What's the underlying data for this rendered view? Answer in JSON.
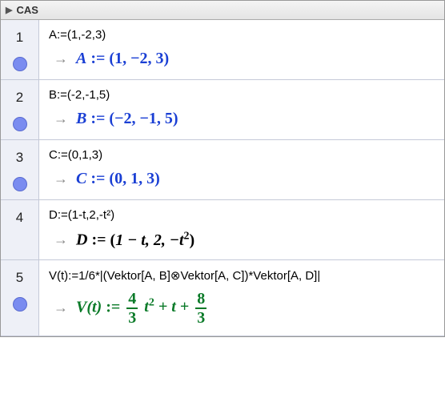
{
  "panel": {
    "title": "CAS"
  },
  "rows": [
    {
      "num": "1",
      "has_marker": true,
      "input": "A:=(1,-2,3)",
      "output_color": "blue",
      "out_lhs": "A",
      "out_assign": " := ",
      "out_rhs_plain": "(1, −2, 3)"
    },
    {
      "num": "2",
      "has_marker": true,
      "input": "B:=(-2,-1,5)",
      "output_color": "blue",
      "out_lhs": "B",
      "out_assign": " := ",
      "out_rhs_plain": "(−2, −1, 5)"
    },
    {
      "num": "3",
      "has_marker": true,
      "input": "C:=(0,1,3)",
      "output_color": "blue",
      "out_lhs": "C",
      "out_assign": " := ",
      "out_rhs_plain": "(0, 1, 3)"
    },
    {
      "num": "4",
      "has_marker": false,
      "input": "D:=(1-t,2,-t²)",
      "output_color": "black",
      "out_lhs": "D",
      "out_assign": " := ",
      "out_rhs_html": "<span class='paren'>(</span>1 − t, 2, −t<sup>2</sup><span class='paren'>)</span>"
    },
    {
      "num": "5",
      "has_marker": true,
      "input": "V(t):=1/6*|(Vektor[A, B]⊗Vektor[A, C])*Vektor[A, D]|",
      "output_color": "green",
      "out_lhs": "V(t)",
      "out_assign": " := ",
      "out_rhs_html": "<span class='frac'><span class='num'>4</span><span class='den'>3</span></span> t<sup>2</sup> + t + <span class='frac'><span class='num'>8</span><span class='den'>3</span></span>"
    }
  ]
}
